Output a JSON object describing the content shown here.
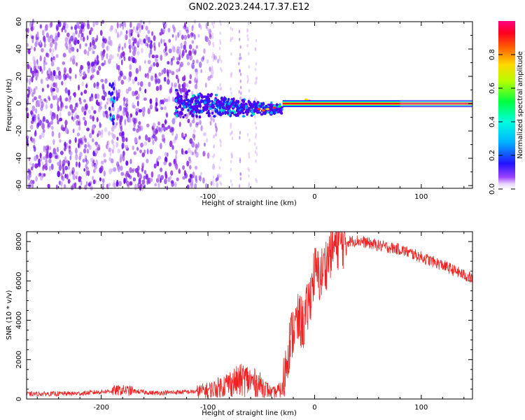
{
  "figure": {
    "title": "GN02.2023.244.17.37.E12"
  },
  "chart_data": [
    {
      "type": "heatmap",
      "panel": "spectrogram",
      "xlabel": "Height of straight line (km)",
      "ylabel": "Frequency (Hz)",
      "xlim": [
        -270,
        148
      ],
      "ylim": [
        -62,
        60
      ],
      "xticks": [
        -200,
        -100,
        0,
        100
      ],
      "yticks": [
        60,
        40,
        20,
        0,
        -20,
        -40,
        -60
      ],
      "colormap": "rainbow",
      "colorbar": {
        "label": "Normalized spectral amplitude",
        "range": [
          0,
          1
        ],
        "ticks": [
          "0.0",
          "0.2",
          "0.4",
          "0.6",
          "0.8"
        ]
      },
      "features": {
        "noise_region_x": [
          -270,
          -105
        ],
        "broadening_region_x": [
          -130,
          -30
        ],
        "tone_start_x": -30,
        "tone_frequency_hz": 0
      }
    },
    {
      "type": "line",
      "panel": "snr",
      "xlabel": "Height of straight line (km)",
      "ylabel": "SNR (10 * v/v)",
      "xlim": [
        -270,
        148
      ],
      "ylim": [
        0,
        8500
      ],
      "xticks": [
        -200,
        -100,
        0,
        100
      ],
      "yticks": [
        0,
        2000,
        4000,
        6000,
        8000
      ],
      "color": "#ee2222",
      "series": [
        {
          "x": [
            -270,
            -220,
            -180,
            -150,
            -110,
            -95,
            -80,
            -65,
            -50,
            -40,
            -30,
            -25,
            -20,
            -15,
            -10,
            -5,
            0,
            5,
            10,
            15,
            20,
            30,
            40,
            60,
            80,
            100,
            120,
            148
          ],
          "values": [
            250,
            280,
            450,
            300,
            380,
            500,
            800,
            1000,
            700,
            300,
            500,
            2500,
            3500,
            4000,
            3800,
            5000,
            6500,
            6200,
            6800,
            7500,
            7900,
            8000,
            8050,
            7800,
            7600,
            7200,
            6800,
            6100
          ]
        }
      ]
    }
  ]
}
